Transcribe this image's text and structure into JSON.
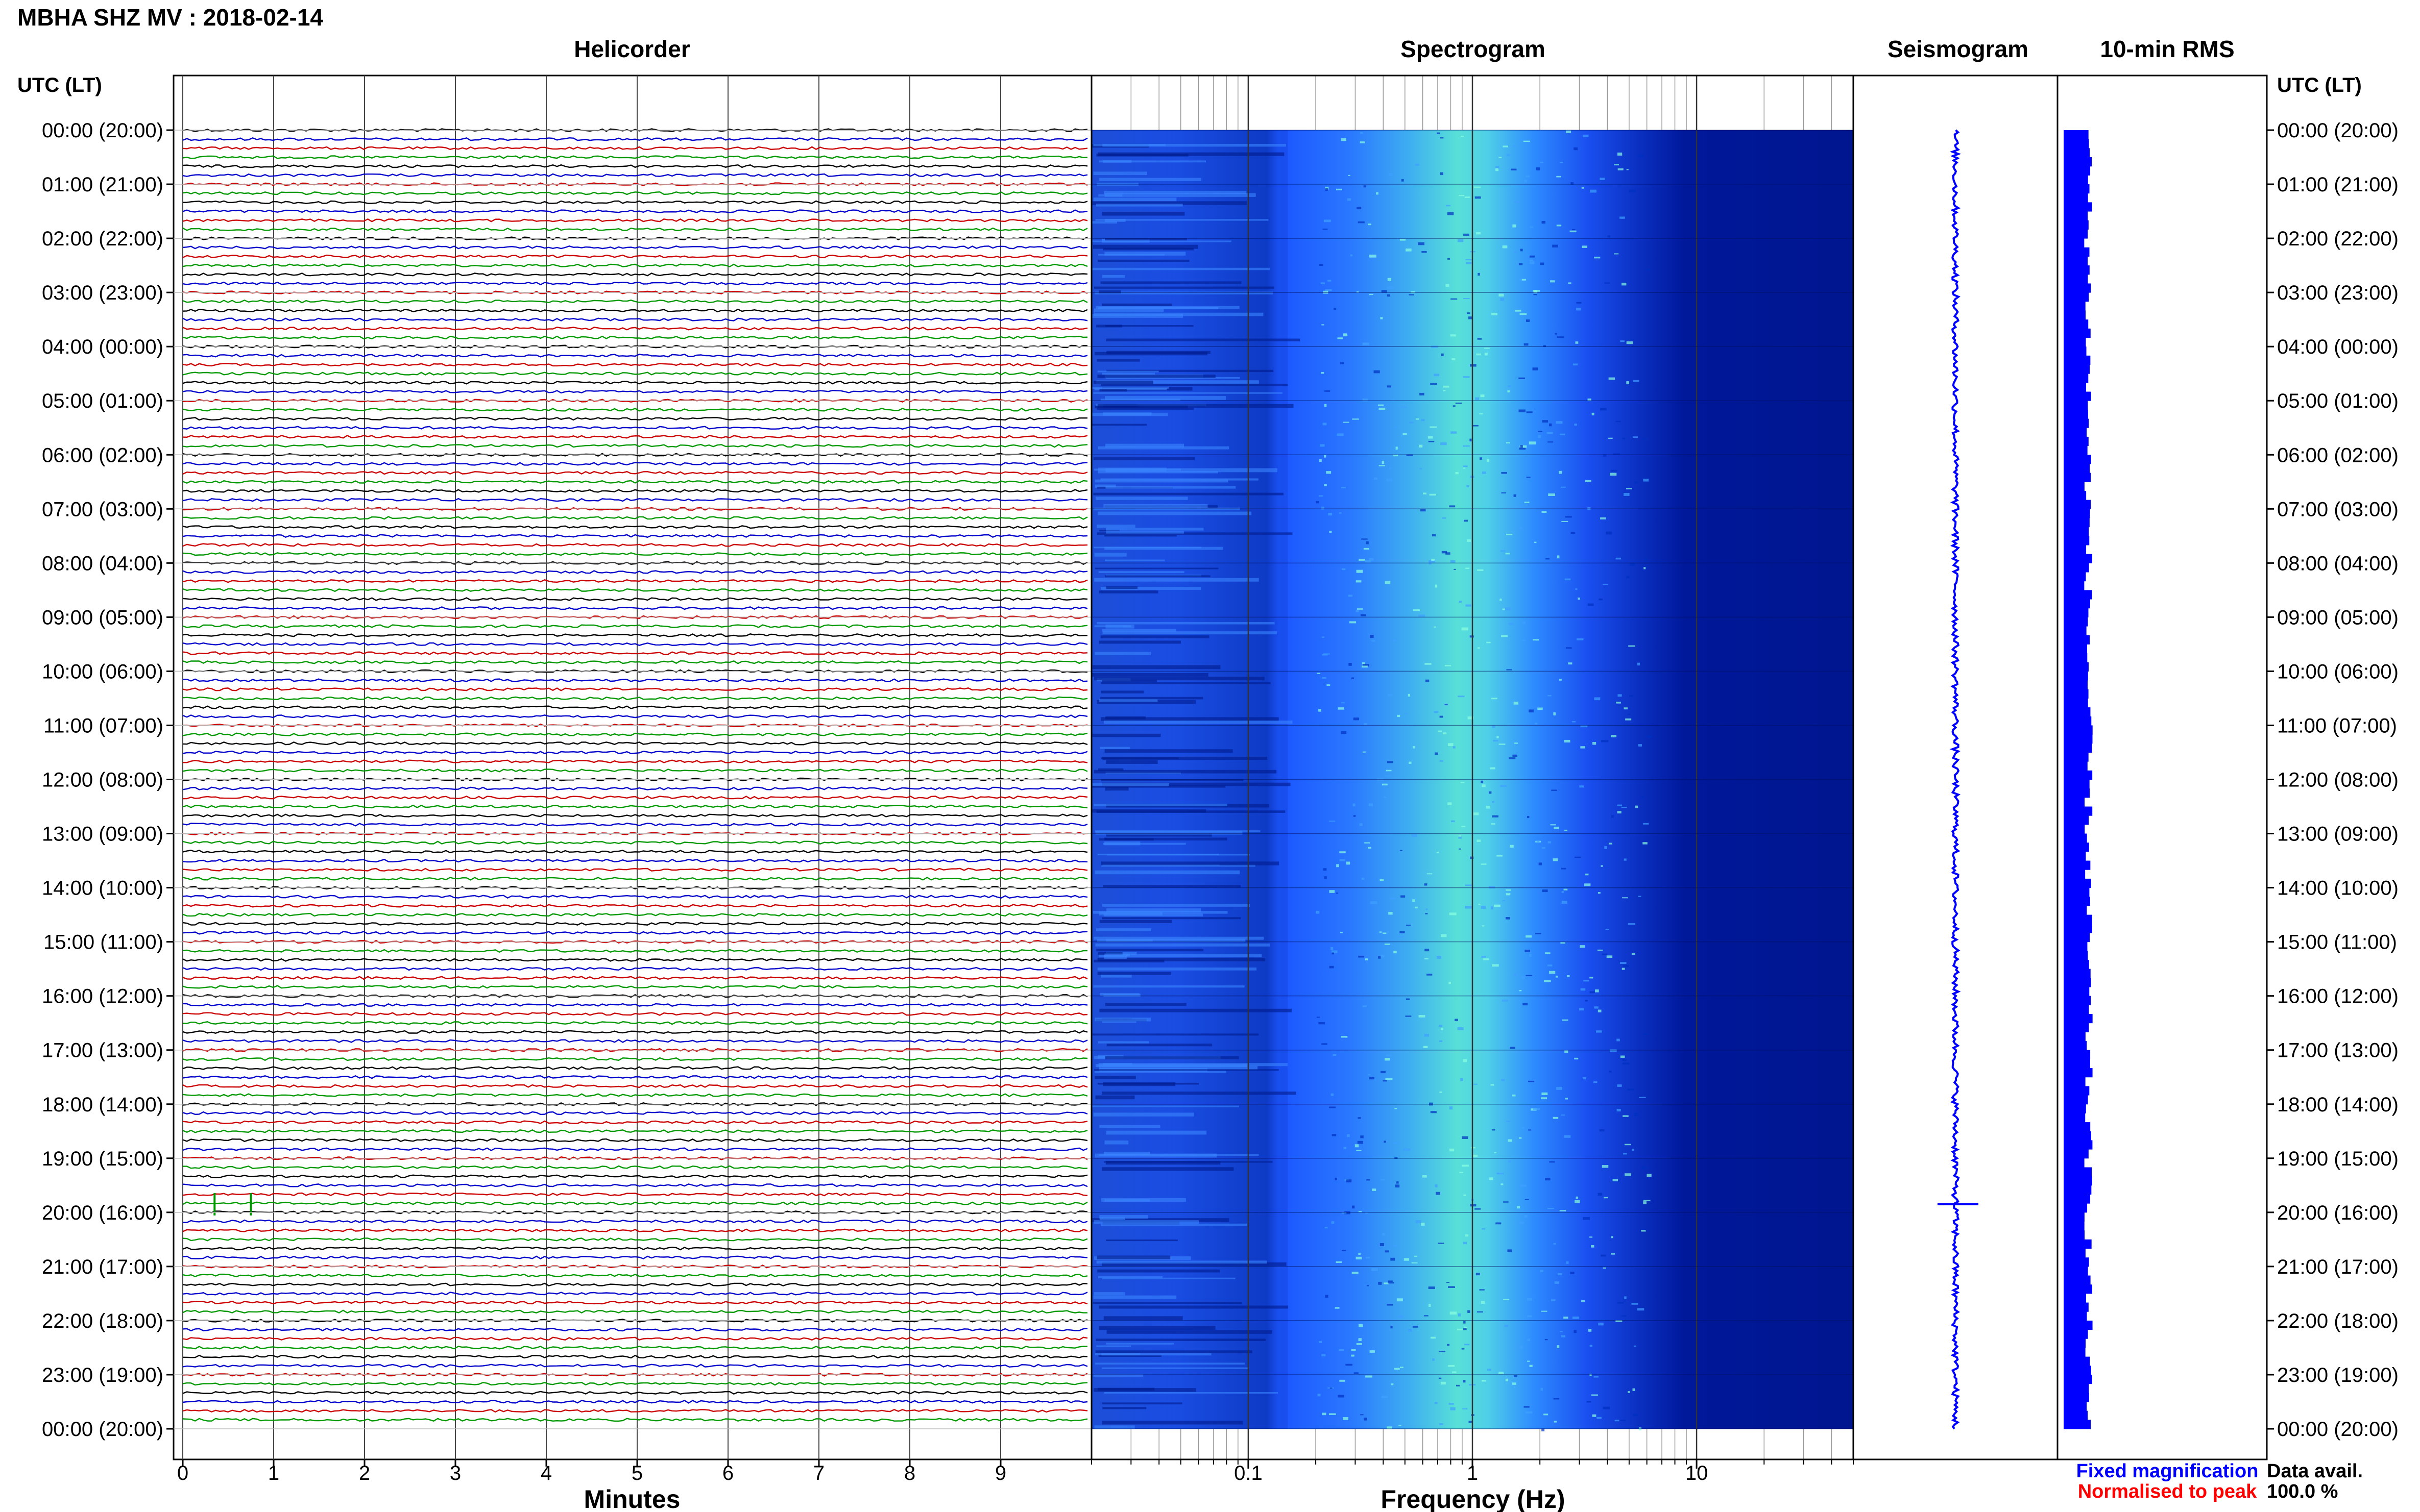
{
  "header": {
    "station_title": "MBHA SHZ MV : 2018-02-14",
    "utc_lt_label": "UTC (LT)"
  },
  "panels": {
    "helicorder_title": "Helicorder",
    "spectrogram_title": "Spectrogram",
    "seismogram_title": "Seismogram",
    "rms_title": "10-min RMS"
  },
  "axes": {
    "minutes_label": "Minutes",
    "frequency_label": "Frequency (Hz)"
  },
  "legend": {
    "fixed_magnification": "Fixed magnification",
    "normalised_to_peak": "Normalised to peak",
    "fixed_color": "#0000ff",
    "normalised_color": "#ff0000"
  },
  "availability": {
    "label": "Data avail.",
    "value": "100.0 %"
  },
  "colors": {
    "trace_cycle": [
      "#000000",
      "#0000cc",
      "#cc0000",
      "#009900"
    ],
    "spectrogram_low": "#00008b",
    "spectrogram_mid": "#1e50ff",
    "spectrogram_high": "#66ffd0",
    "seismogram": "#0000ff",
    "rms": "#0000ff"
  },
  "chart_data": [
    {
      "type": "line",
      "panel": "helicorder",
      "title": "Helicorder",
      "xlabel": "Minutes",
      "x_ticks": [
        "0",
        "1",
        "2",
        "3",
        "4",
        "5",
        "6",
        "7",
        "8",
        "9"
      ],
      "xlim": [
        0,
        10
      ],
      "trace_duration_min": 10,
      "traces_per_hour": 6,
      "time_ticks_utc": [
        "00:00 (20:00)",
        "01:00 (21:00)",
        "02:00 (22:00)",
        "03:00 (23:00)",
        "04:00 (00:00)",
        "05:00 (01:00)",
        "06:00 (02:00)",
        "07:00 (03:00)",
        "08:00 (04:00)",
        "09:00 (05:00)",
        "10:00 (06:00)",
        "11:00 (07:00)",
        "12:00 (08:00)",
        "13:00 (09:00)",
        "14:00 (10:00)",
        "15:00 (11:00)",
        "16:00 (12:00)",
        "17:00 (13:00)",
        "18:00 (14:00)",
        "19:00 (15:00)",
        "20:00 (16:00)",
        "21:00 (17:00)",
        "22:00 (18:00)",
        "23:00 (19:00)",
        "00:00 (20:00)"
      ],
      "events": [
        {
          "hour": 20,
          "minute": 0.35
        },
        {
          "hour": 20,
          "minute": 0.75
        }
      ]
    },
    {
      "type": "heatmap",
      "panel": "spectrogram",
      "title": "Spectrogram",
      "xlabel": "Frequency (Hz)",
      "x_scale": "log",
      "xlim": [
        0.02,
        50
      ],
      "x_ticks": [
        "0.1",
        "1",
        "10"
      ],
      "ylim_hours": [
        0,
        24
      ],
      "peak_band_hz": [
        0.6,
        2.5
      ]
    },
    {
      "type": "line",
      "panel": "seismogram",
      "title": "Seismogram",
      "ylim_hours": [
        0,
        24
      ],
      "events": [
        {
          "hour": 19.85
        }
      ]
    },
    {
      "type": "bar",
      "panel": "rms",
      "title": "10-min RMS",
      "ylim_hours": [
        0,
        24
      ],
      "bins": 144,
      "relative_level": 0.12
    }
  ]
}
